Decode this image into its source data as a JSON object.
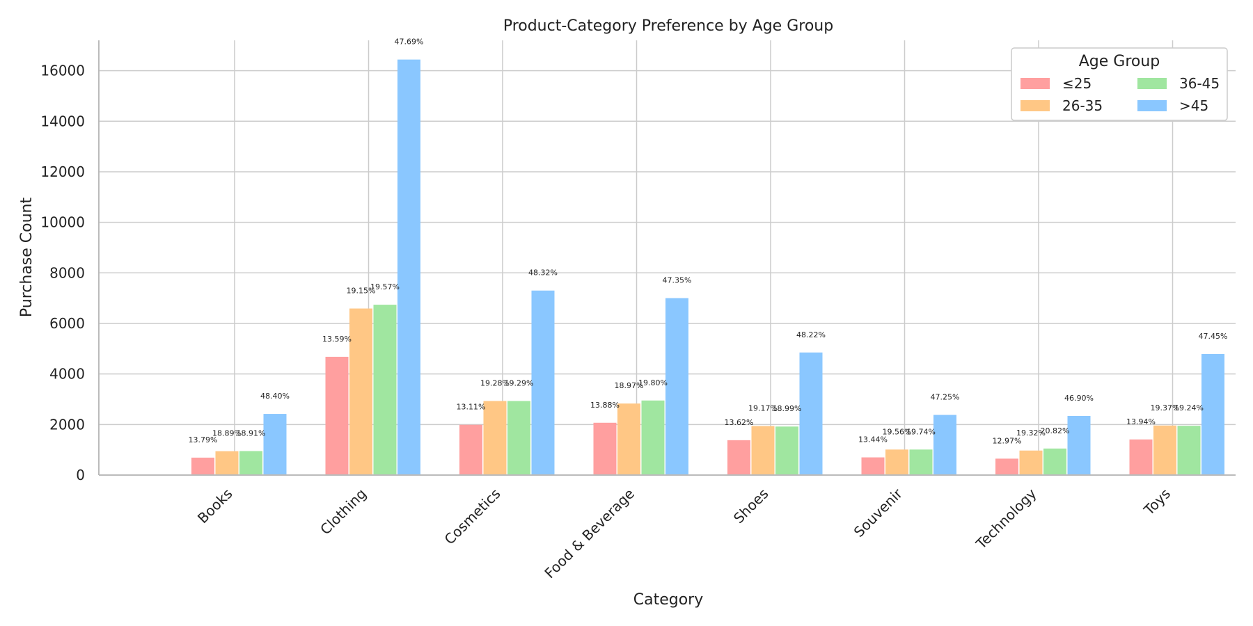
{
  "chart_data": {
    "type": "bar",
    "title": "Product-Category Preference by Age Group",
    "xlabel": "Category",
    "ylabel": "Purchase Count",
    "ylim": [
      0,
      17200
    ],
    "yticks": [
      0,
      2000,
      4000,
      6000,
      8000,
      10000,
      12000,
      14000,
      16000
    ],
    "grid": true,
    "legend_title": "Age Group",
    "legend_position": "top-right",
    "categories": [
      "Books",
      "Clothing",
      "Cosmetics",
      "Food & Beverage",
      "Shoes",
      "Souvenir",
      "Technology",
      "Toys"
    ],
    "series": [
      {
        "name": "≤25",
        "color": "#ff9f9f",
        "values": [
          690,
          4680,
          1990,
          2070,
          1380,
          700,
          650,
          1410
        ],
        "labels": [
          "13.79%",
          "13.59%",
          "13.11%",
          "13.88%",
          "13.62%",
          "13.44%",
          "12.97%",
          "13.94%"
        ]
      },
      {
        "name": "26-35",
        "color": "#ffc785",
        "values": [
          945,
          6590,
          2930,
          2830,
          1940,
          1010,
          970,
          1960
        ],
        "labels": [
          "18.89%",
          "19.15%",
          "19.28%",
          "18.97%",
          "19.17%",
          "19.56%",
          "19.32%",
          "19.37%"
        ]
      },
      {
        "name": "36-45",
        "color": "#a0e6a0",
        "values": [
          950,
          6740,
          2930,
          2950,
          1920,
          1010,
          1050,
          1950
        ],
        "labels": [
          "18.91%",
          "19.57%",
          "19.29%",
          "19.80%",
          "18.99%",
          "19.74%",
          "20.82%",
          "19.24%"
        ]
      },
      {
        "name": ">45",
        "color": "#8ac7ff",
        "values": [
          2420,
          16440,
          7300,
          7000,
          4850,
          2380,
          2340,
          4790
        ],
        "labels": [
          "48.40%",
          "47.69%",
          "48.32%",
          "47.35%",
          "48.22%",
          "47.25%",
          "46.90%",
          "47.45%"
        ]
      }
    ]
  }
}
